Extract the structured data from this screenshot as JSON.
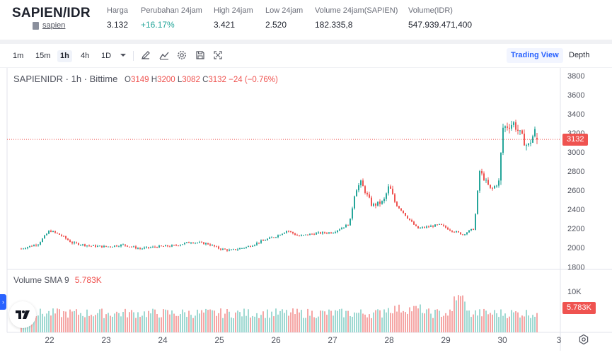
{
  "header": {
    "pair": "SAPIEN/IDR",
    "sub_link": "sapien",
    "stats": [
      {
        "label": "Harga",
        "value": "3.132",
        "x": 151,
        "up": false
      },
      {
        "label": "Perubahan 24jam",
        "value": "+16.17%",
        "x": 199,
        "up": true
      },
      {
        "label": "High 24jam",
        "value": "3.421",
        "x": 302,
        "up": false
      },
      {
        "label": "Low 24jam",
        "value": "2.520",
        "x": 375,
        "up": false
      },
      {
        "label": "Volume 24jam(SAPIEN)",
        "value": "182.335,8",
        "x": 445,
        "up": false
      },
      {
        "label": "Volume(IDR)",
        "value": "547.939.471,400",
        "x": 577,
        "up": false
      }
    ]
  },
  "toolbar": {
    "intervals": [
      "1m",
      "15m",
      "1h",
      "4h",
      "1D"
    ],
    "active_interval": "1h",
    "view_trading": "Trading View",
    "view_depth": "Depth"
  },
  "legend": {
    "symbol": "SAPIENIDR · 1h · Bittime",
    "o_label": "O",
    "o_value": "3149",
    "h_label": "H",
    "h_value": "3200",
    "l_label": "L",
    "l_value": "3082",
    "c_label": "C",
    "c_value": "3132",
    "change": "−24 (−0.76%)"
  },
  "volume_legend": {
    "label": "Volume SMA 9",
    "value": "5.783K"
  },
  "price_tag": "3132",
  "volume_tag": "5.783K",
  "colors": {
    "up": "#26a69a",
    "down": "#ef5350",
    "accent": "#2962ff"
  },
  "chart_data": {
    "type": "candlestick",
    "symbol": "SAPIENIDR",
    "interval": "1h",
    "y_axis_ticks": [
      1800,
      2000,
      2200,
      2400,
      2600,
      2800,
      3000,
      3200,
      3400,
      3600,
      3800
    ],
    "ylim": [
      1780,
      3880
    ],
    "x_axis_ticks": [
      "22",
      "23",
      "24",
      "25",
      "26",
      "27",
      "28",
      "29",
      "30",
      "3"
    ],
    "last_price": 3132,
    "volume_ticks": [
      "10K"
    ],
    "volume_sma": 5783,
    "price_path": [
      [
        21.5,
        1990
      ],
      [
        21.8,
        2040
      ],
      [
        22.0,
        2180
      ],
      [
        22.2,
        2130
      ],
      [
        22.4,
        2050
      ],
      [
        22.7,
        2020
      ],
      [
        23.0,
        2010
      ],
      [
        23.3,
        2030
      ],
      [
        23.6,
        1990
      ],
      [
        23.9,
        2010
      ],
      [
        24.2,
        2020
      ],
      [
        24.5,
        2060
      ],
      [
        24.8,
        2040
      ],
      [
        25.0,
        1990
      ],
      [
        25.2,
        1970
      ],
      [
        25.5,
        2010
      ],
      [
        25.8,
        2080
      ],
      [
        26.0,
        2120
      ],
      [
        26.2,
        2180
      ],
      [
        26.4,
        2120
      ],
      [
        26.7,
        2150
      ],
      [
        27.0,
        2160
      ],
      [
        27.3,
        2250
      ],
      [
        27.4,
        2600
      ],
      [
        27.5,
        2680
      ],
      [
        27.7,
        2440
      ],
      [
        27.9,
        2480
      ],
      [
        28.0,
        2650
      ],
      [
        28.1,
        2480
      ],
      [
        28.3,
        2330
      ],
      [
        28.5,
        2200
      ],
      [
        28.7,
        2220
      ],
      [
        28.9,
        2240
      ],
      [
        29.1,
        2180
      ],
      [
        29.3,
        2140
      ],
      [
        29.5,
        2200
      ],
      [
        29.6,
        2800
      ],
      [
        29.8,
        2600
      ],
      [
        29.95,
        2700
      ],
      [
        30.0,
        3250
      ],
      [
        30.2,
        3300
      ],
      [
        30.3,
        3200
      ],
      [
        30.45,
        3050
      ],
      [
        30.6,
        3250
      ],
      [
        30.62,
        3132
      ]
    ]
  }
}
